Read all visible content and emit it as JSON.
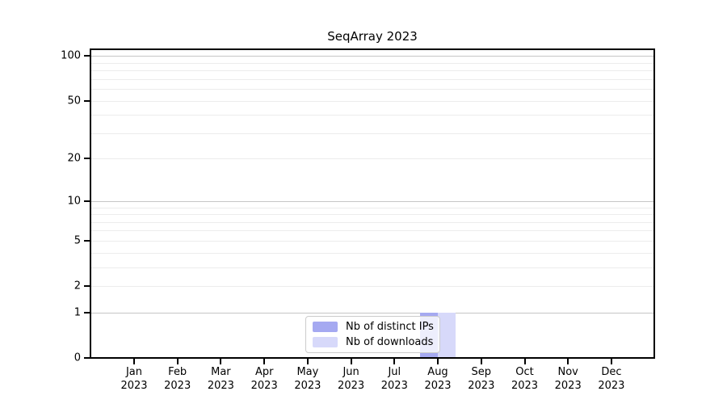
{
  "chart_data": {
    "type": "bar",
    "title": "SeqArray 2023",
    "categories": [
      "Jan",
      "Feb",
      "Mar",
      "Apr",
      "May",
      "Jun",
      "Jul",
      "Aug",
      "Sep",
      "Oct",
      "Nov",
      "Dec"
    ],
    "x_tick_second_line": "2023",
    "series": [
      {
        "name": "Nb of distinct IPs",
        "color": "#a5a9f1",
        "values": [
          0,
          0,
          0,
          0,
          0,
          0,
          0,
          1,
          0,
          0,
          0,
          0
        ]
      },
      {
        "name": "Nb of downloads",
        "color": "#d7d9fa",
        "values": [
          0,
          0,
          0,
          0,
          0,
          0,
          0,
          1,
          0,
          0,
          0,
          0
        ]
      }
    ],
    "y_axis": {
      "scale": "log1p",
      "tick_values": [
        0,
        1,
        2,
        5,
        10,
        20,
        50,
        100
      ],
      "major_grid_values": [
        1,
        10,
        100
      ],
      "minor_grid_values": [
        2,
        3,
        4,
        5,
        6,
        7,
        8,
        9,
        20,
        30,
        40,
        50,
        60,
        70,
        80,
        90
      ],
      "ylim": [
        0,
        112
      ]
    },
    "legend_position": "bottom-center",
    "colors": {
      "major_grid": "#c6c6c6",
      "minor_grid": "#ececec",
      "axis": "#000000",
      "background": "#ffffff"
    }
  }
}
